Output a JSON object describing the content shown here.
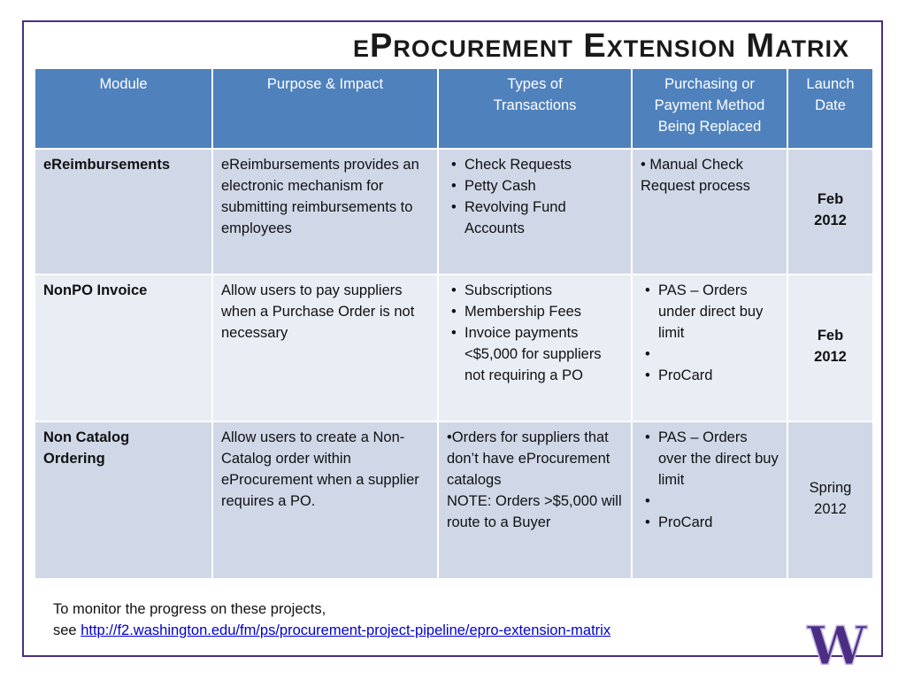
{
  "title": "eProcurement Extension Matrix",
  "headers": {
    "module": "Module",
    "purpose": "Purpose & Impact",
    "types": "Types of Transactions",
    "replaced": "Purchasing or Payment Method Being Replaced",
    "date": "Launch Date"
  },
  "rows": [
    {
      "module": "eReimbursements",
      "purpose": "eReimbursements provides an electronic mechanism for submitting reimbursements to employees",
      "types": [
        "Check Requests",
        "Petty Cash",
        "Revolving Fund Accounts"
      ],
      "replaced_text": "• Manual Check Request process",
      "date_line1": "Feb",
      "date_line2": "2012"
    },
    {
      "module": "NonPO Invoice",
      "purpose": "Allow users to pay suppliers when a Purchase Order is not necessary",
      "types": [
        "Subscriptions",
        "Membership Fees",
        "Invoice payments <$5,000 for suppliers not requiring a PO"
      ],
      "replaced": [
        "PAS – Orders under direct buy limit",
        "ProCard"
      ],
      "date_line1": "Feb",
      "date_line2": "2012"
    },
    {
      "module_line1": "Non Catalog",
      "module_line2": "Ordering",
      "purpose": "Allow users to create a Non-Catalog order within eProcurement when a supplier requires a PO.",
      "types_text": "•Orders for suppliers that don’t have eProcurement catalogs",
      "types_note": "NOTE: Orders >$5,000 will route to a Buyer",
      "replaced": [
        "PAS – Orders over the direct buy limit",
        "ProCard"
      ],
      "date_line1": "Spring",
      "date_line2": "2012"
    }
  ],
  "footer": {
    "line1": "To monitor the progress on these projects,",
    "see": "see ",
    "link": "http://f2.washington.edu/fm/ps/procurement-project-pipeline/epro-extension-matrix"
  },
  "logo": {
    "icon": "uw-w-logo",
    "letter": "W",
    "color": "#4b2e83",
    "outline": "#c5b4e3"
  },
  "colors": {
    "header_bg": "#4f81bd",
    "row_dark": "#d0d8e8",
    "row_light": "#e9edf4",
    "frame": "#4b2e83"
  }
}
